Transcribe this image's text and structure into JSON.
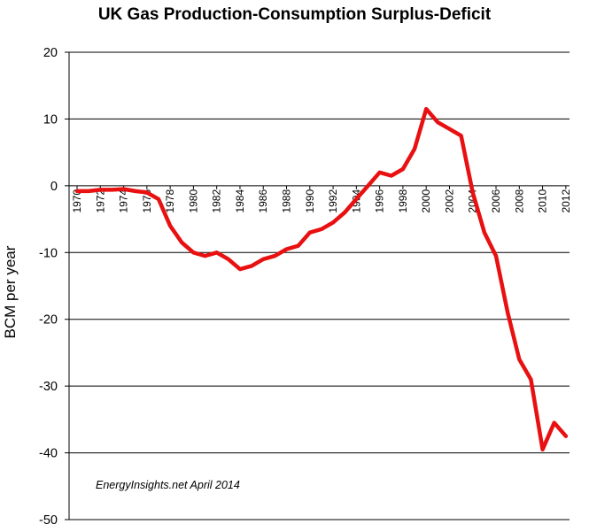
{
  "chart_data": {
    "type": "line",
    "title": "UK Gas Production-Consumption  Surplus-Deficit",
    "xlabel": "",
    "ylabel": "BCM per year",
    "annotation": "EnergyInsights.net April 2014",
    "ylim": [
      -50,
      20
    ],
    "yticks": [
      20,
      10,
      0,
      -10,
      -20,
      -30,
      -40,
      -50
    ],
    "xlim": [
      1970,
      2013
    ],
    "xtick_labels": [
      "1970",
      "1972",
      "1974",
      "1976",
      "1978",
      "1980",
      "1982",
      "1984",
      "1986",
      "1988",
      "1990",
      "1992",
      "1994",
      "1996",
      "1998",
      "2000",
      "2002",
      "2004",
      "2006",
      "2008",
      "2010",
      "2012"
    ],
    "grid": "horizontal",
    "line_color": "#e81010",
    "x": [
      1970,
      1971,
      1972,
      1973,
      1974,
      1975,
      1976,
      1977,
      1978,
      1979,
      1980,
      1981,
      1982,
      1983,
      1984,
      1985,
      1986,
      1987,
      1988,
      1989,
      1990,
      1991,
      1992,
      1993,
      1994,
      1995,
      1996,
      1997,
      1998,
      1999,
      2000,
      2001,
      2002,
      2003,
      2004,
      2005,
      2006,
      2007,
      2008,
      2009,
      2010,
      2011,
      2012
    ],
    "series": [
      {
        "values": [
          -0.8,
          -0.8,
          -0.6,
          -0.6,
          -0.5,
          -0.8,
          -1.0,
          -2.0,
          -6.0,
          -8.5,
          -10.0,
          -10.5,
          -10.0,
          -11.0,
          -12.5,
          -12.0,
          -11.0,
          -10.5,
          -9.5,
          -9.0,
          -7.0,
          -6.5,
          -5.5,
          -4.0,
          -2.0,
          0.0,
          2.0,
          1.5,
          2.5,
          5.5,
          11.5,
          9.5,
          8.5,
          7.5,
          -1.0,
          -7.0,
          -10.5,
          -19.0,
          -26.0,
          -29.0,
          -39.5,
          -35.5,
          -37.5
        ]
      }
    ]
  }
}
